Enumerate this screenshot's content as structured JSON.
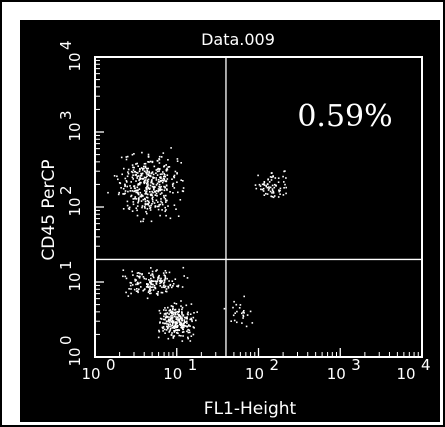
{
  "chart_data": {
    "type": "scatter",
    "title": "Data.009",
    "xlabel": "FL1-Height",
    "ylabel": "CD45 PerCP",
    "x_scale": "log",
    "y_scale": "log",
    "xlim": [
      1,
      10000
    ],
    "ylim": [
      1,
      10000
    ],
    "x_ticks": [
      {
        "base": "10",
        "exp": "0"
      },
      {
        "base": "10",
        "exp": "1"
      },
      {
        "base": "10",
        "exp": "2"
      },
      {
        "base": "10",
        "exp": "3"
      },
      {
        "base": "10",
        "exp": "4"
      }
    ],
    "y_ticks": [
      {
        "base": "10",
        "exp": "0"
      },
      {
        "base": "10",
        "exp": "1"
      },
      {
        "base": "10",
        "exp": "2"
      },
      {
        "base": "10",
        "exp": "3"
      },
      {
        "base": "10",
        "exp": "4"
      }
    ],
    "quadrant_gate": {
      "x": 40,
      "y": 20
    },
    "annotation": "0.59%",
    "background_color": "#000000",
    "foreground_color": "#ffffff",
    "clusters": [
      {
        "x_center": 4.5,
        "y_center": 200,
        "x_spread_decades": 0.5,
        "y_spread_decades": 0.5,
        "count": 420
      },
      {
        "x_center": 5,
        "y_center": 10,
        "x_spread_decades": 0.45,
        "y_spread_decades": 0.22,
        "count": 160
      },
      {
        "x_center": 10,
        "y_center": 3,
        "x_spread_decades": 0.28,
        "y_spread_decades": 0.3,
        "count": 260
      },
      {
        "x_center": 150,
        "y_center": 200,
        "x_spread_decades": 0.28,
        "y_spread_decades": 0.25,
        "count": 70
      },
      {
        "x_center": 60,
        "y_center": 4,
        "x_spread_decades": 0.2,
        "y_spread_decades": 0.3,
        "count": 25
      }
    ]
  }
}
